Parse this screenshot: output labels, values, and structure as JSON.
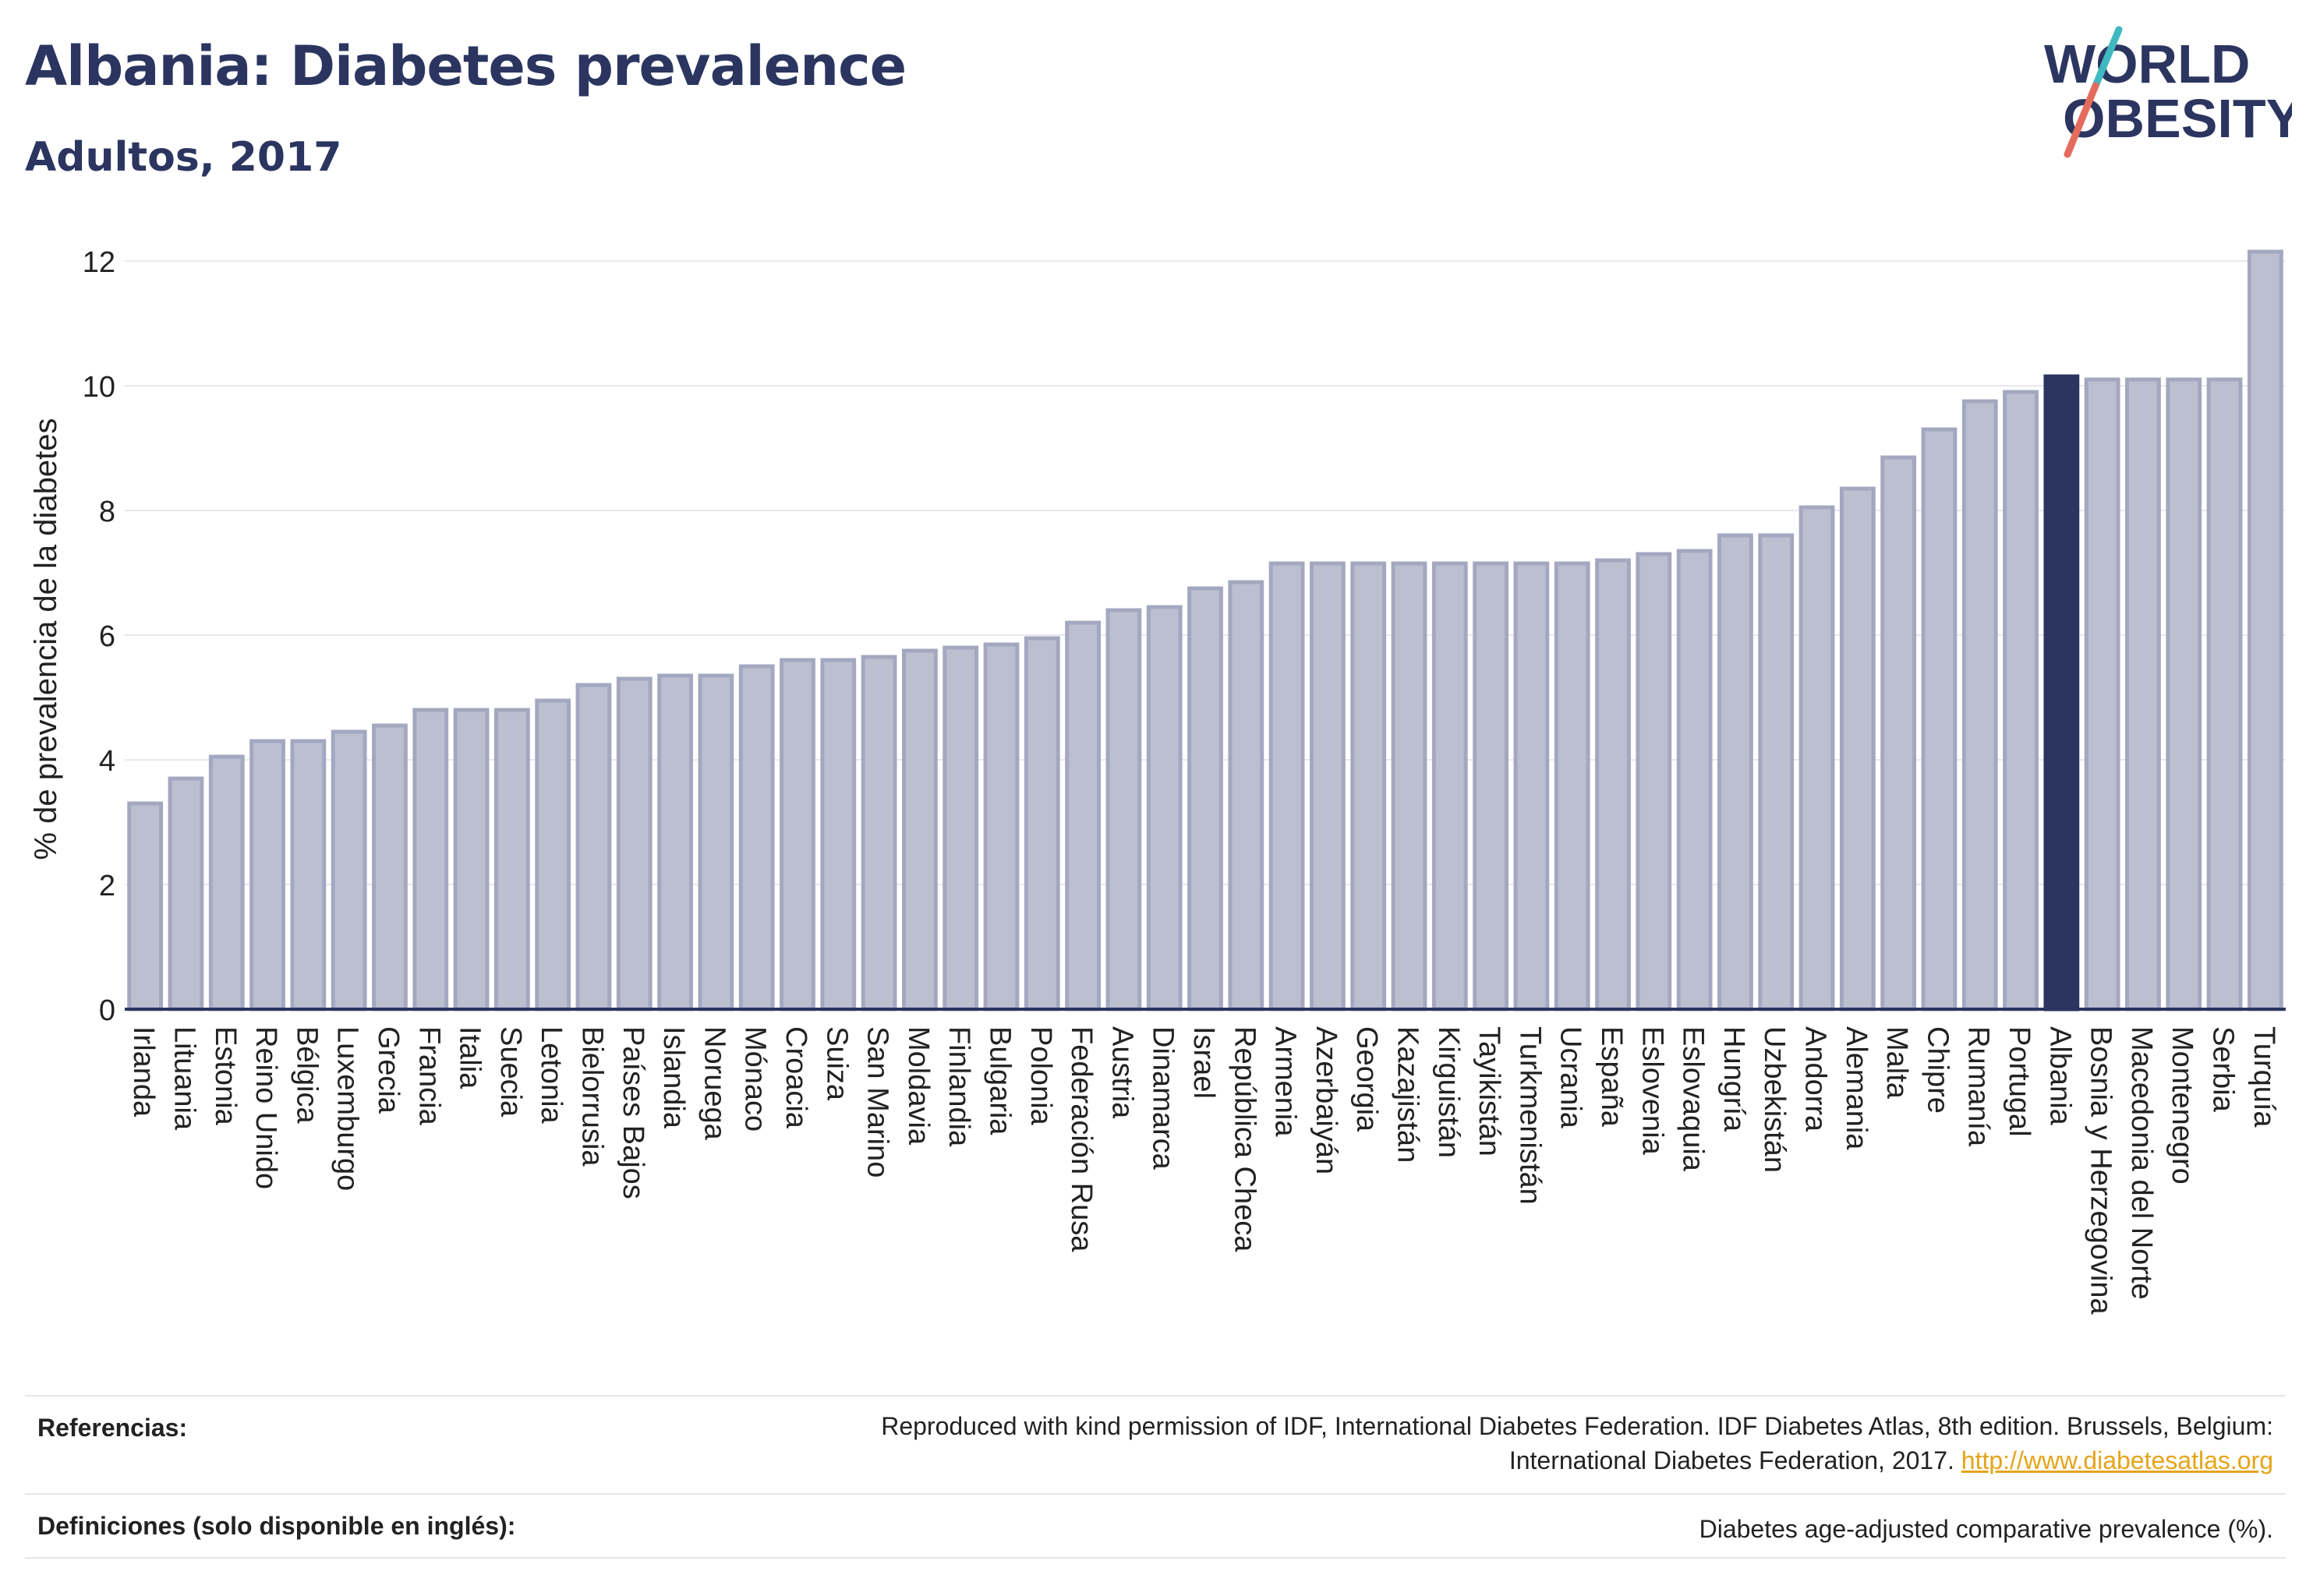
{
  "header": {
    "title": "Albania: Diabetes prevalence",
    "subtitle": "Adultos, 2017",
    "logo_line1": "WORLD",
    "logo_line2": "OBESITY"
  },
  "colors": {
    "bar": "#bbbfd0",
    "bar_edge": "#a3a8c0",
    "highlight": "#2b3560",
    "grid": "#e8e8ee",
    "axis_text": "#222222",
    "link": "#e5a41a",
    "logo_teal": "#3fb8c1",
    "logo_red": "#e56b5d"
  },
  "chart_data": {
    "type": "bar",
    "title": "Albania: Diabetes prevalence",
    "subtitle": "Adultos, 2017",
    "ylabel": "% de prevalencia de la diabetes",
    "xlabel": "",
    "ylim": [
      0,
      12.5
    ],
    "yticks": [
      0,
      2,
      4,
      6,
      8,
      10,
      12
    ],
    "grid": true,
    "highlight": "Albania",
    "categories": [
      "Irlanda",
      "Lituania",
      "Estonia",
      "Reino Unido",
      "Bélgica",
      "Luxemburgo",
      "Grecia",
      "Francia",
      "Italia",
      "Suecia",
      "Letonia",
      "Bielorrusia",
      "Países Bajos",
      "Islandia",
      "Noruega",
      "Mónaco",
      "Croacia",
      "Suiza",
      "San Marino",
      "Moldavia",
      "Finlandia",
      "Bulgaria",
      "Polonia",
      "Federación Rusa",
      "Austria",
      "Dinamarca",
      "Israel",
      "República Checa",
      "Armenia",
      "Azerbaiyán",
      "Georgia",
      "Kazajistán",
      "Kirguistán",
      "Tayikistán",
      "Turkmenistán",
      "Ucrania",
      "España",
      "Eslovenia",
      "Eslovaquia",
      "Hungría",
      "Uzbekistán",
      "Andorra",
      "Alemania",
      "Malta",
      "Chipre",
      "Rumanía",
      "Portugal",
      "Albania",
      "Bosnia y Herzegovina",
      "Macedonia del Norte",
      "Montenegro",
      "Serbia",
      "Turquía"
    ],
    "values": [
      3.3,
      3.7,
      4.05,
      4.3,
      4.3,
      4.45,
      4.55,
      4.8,
      4.8,
      4.8,
      4.95,
      5.2,
      5.3,
      5.35,
      5.35,
      5.5,
      5.6,
      5.6,
      5.65,
      5.75,
      5.8,
      5.85,
      5.95,
      6.2,
      6.4,
      6.45,
      6.75,
      6.85,
      7.15,
      7.15,
      7.15,
      7.15,
      7.15,
      7.15,
      7.15,
      7.15,
      7.2,
      7.3,
      7.35,
      7.6,
      7.6,
      8.05,
      8.35,
      8.85,
      9.3,
      9.75,
      9.9,
      10.15,
      10.1,
      10.1,
      10.1,
      10.1,
      12.15
    ]
  },
  "footer": {
    "refs_label": "Referencias:",
    "refs_line1": "Reproduced with kind permission of IDF, International Diabetes Federation. IDF Diabetes Atlas, 8th edition. Brussels, Belgium:",
    "refs_line2": "International Diabetes Federation, 2017.",
    "refs_link": "http://www.diabetesatlas.org",
    "defs_label": "Definiciones (solo disponible en inglés):",
    "defs_text": "Diabetes age-adjusted comparative prevalence (%)."
  }
}
